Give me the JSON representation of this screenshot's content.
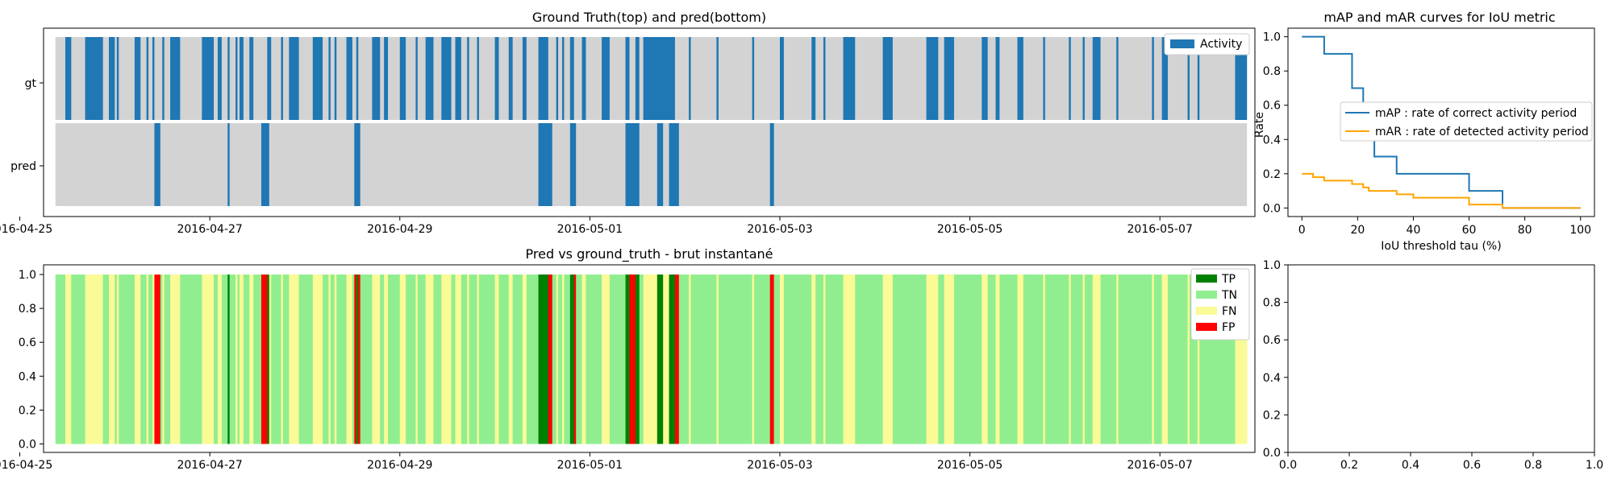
{
  "chart_data": [
    {
      "type": "timeline",
      "title": "Ground Truth(top) and pred(bottom)",
      "rows": [
        "gt",
        "pred"
      ],
      "x_range": [
        "2016-04-25T06:00",
        "2016-05-08T00:00"
      ],
      "x_ticks": [
        "2016-04-25",
        "2016-04-27",
        "2016-04-29",
        "2016-05-01",
        "2016-05-03",
        "2016-05-05",
        "2016-05-07"
      ],
      "data_range": [
        "2016-04-25T09:00",
        "2016-05-07T22:00"
      ],
      "legend": [
        "Activity"
      ],
      "legend_position": "upper right",
      "colors": {
        "activity": "#1f77b4",
        "background": "#d3d3d3"
      },
      "gt_activity_intervals": [
        [
          "2016-04-25T11:30",
          "2016-04-25T13:00"
        ],
        [
          "2016-04-25T16:30",
          "2016-04-25T21:00"
        ],
        [
          "2016-04-25T22:30",
          "2016-04-26T00:00"
        ],
        [
          "2016-04-26T00:30",
          "2016-04-26T01:00"
        ],
        [
          "2016-04-26T05:00",
          "2016-04-26T06:30"
        ],
        [
          "2016-04-26T08:00",
          "2016-04-26T08:30"
        ],
        [
          "2016-04-26T09:30",
          "2016-04-26T10:00"
        ],
        [
          "2016-04-26T12:00",
          "2016-04-26T12:30"
        ],
        [
          "2016-04-26T14:00",
          "2016-04-26T16:30"
        ],
        [
          "2016-04-26T22:00",
          "2016-04-27T01:00"
        ],
        [
          "2016-04-27T02:00",
          "2016-04-27T03:00"
        ],
        [
          "2016-04-27T04:30",
          "2016-04-27T05:00"
        ],
        [
          "2016-04-27T06:30",
          "2016-04-27T07:00"
        ],
        [
          "2016-04-27T07:30",
          "2016-04-27T08:30"
        ],
        [
          "2016-04-27T10:00",
          "2016-04-27T11:00"
        ],
        [
          "2016-04-27T14:30",
          "2016-04-27T15:30"
        ],
        [
          "2016-04-27T18:00",
          "2016-04-27T18:30"
        ],
        [
          "2016-04-27T20:00",
          "2016-04-27T22:30"
        ],
        [
          "2016-04-28T02:00",
          "2016-04-28T04:30"
        ],
        [
          "2016-04-28T06:00",
          "2016-04-28T06:30"
        ],
        [
          "2016-04-28T07:30",
          "2016-04-28T08:00"
        ],
        [
          "2016-04-28T10:30",
          "2016-04-28T12:00"
        ],
        [
          "2016-04-28T13:00",
          "2016-04-28T13:30"
        ],
        [
          "2016-04-28T17:00",
          "2016-04-28T19:00"
        ],
        [
          "2016-04-28T20:00",
          "2016-04-28T21:00"
        ],
        [
          "2016-04-29T00:00",
          "2016-04-29T01:30"
        ],
        [
          "2016-04-29T04:00",
          "2016-04-29T04:30"
        ],
        [
          "2016-04-29T06:30",
          "2016-04-29T08:30"
        ],
        [
          "2016-04-29T10:30",
          "2016-04-29T13:00"
        ],
        [
          "2016-04-29T14:00",
          "2016-04-29T15:30"
        ],
        [
          "2016-04-29T17:00",
          "2016-04-29T17:30"
        ],
        [
          "2016-04-29T19:30",
          "2016-04-29T20:00"
        ],
        [
          "2016-04-30T00:00",
          "2016-04-30T01:00"
        ],
        [
          "2016-04-30T03:30",
          "2016-04-30T04:30"
        ],
        [
          "2016-04-30T07:00",
          "2016-04-30T08:00"
        ],
        [
          "2016-04-30T11:00",
          "2016-04-30T13:30"
        ],
        [
          "2016-04-30T15:30",
          "2016-04-30T16:00"
        ],
        [
          "2016-04-30T17:00",
          "2016-04-30T17:30"
        ],
        [
          "2016-04-30T19:00",
          "2016-04-30T20:00"
        ],
        [
          "2016-04-30T22:00",
          "2016-04-30T23:00"
        ],
        [
          "2016-05-01T03:00",
          "2016-05-01T05:00"
        ],
        [
          "2016-05-01T09:00",
          "2016-05-01T10:00"
        ],
        [
          "2016-05-01T11:30",
          "2016-05-01T12:30"
        ],
        [
          "2016-05-01T13:30",
          "2016-05-01T21:30"
        ],
        [
          "2016-05-02T01:00",
          "2016-05-02T01:30"
        ],
        [
          "2016-05-02T08:00",
          "2016-05-02T08:30"
        ],
        [
          "2016-05-02T17:00",
          "2016-05-02T17:30"
        ],
        [
          "2016-05-03T00:00",
          "2016-05-03T01:00"
        ],
        [
          "2016-05-03T08:00",
          "2016-05-03T09:00"
        ],
        [
          "2016-05-03T11:00",
          "2016-05-03T11:30"
        ],
        [
          "2016-05-03T16:00",
          "2016-05-03T19:00"
        ],
        [
          "2016-05-04T02:00",
          "2016-05-04T04:30"
        ],
        [
          "2016-05-04T13:00",
          "2016-05-04T16:00"
        ],
        [
          "2016-05-04T17:30",
          "2016-05-04T20:00"
        ],
        [
          "2016-05-05T03:00",
          "2016-05-05T04:30"
        ],
        [
          "2016-05-05T06:30",
          "2016-05-05T07:30"
        ],
        [
          "2016-05-05T12:00",
          "2016-05-05T13:30"
        ],
        [
          "2016-05-05T18:30",
          "2016-05-05T19:00"
        ],
        [
          "2016-05-06T01:00",
          "2016-05-06T01:30"
        ],
        [
          "2016-05-06T04:30",
          "2016-05-06T05:00"
        ],
        [
          "2016-05-06T07:00",
          "2016-05-06T09:00"
        ],
        [
          "2016-05-06T13:00",
          "2016-05-06T13:30"
        ],
        [
          "2016-05-06T22:00",
          "2016-05-06T22:30"
        ],
        [
          "2016-05-07T00:30",
          "2016-05-07T02:00"
        ],
        [
          "2016-05-07T07:00",
          "2016-05-07T07:30"
        ],
        [
          "2016-05-07T09:30",
          "2016-05-07T10:00"
        ],
        [
          "2016-05-07T19:00",
          "2016-05-07T22:00"
        ]
      ],
      "pred_activity_intervals": [
        [
          "2016-04-26T10:00",
          "2016-04-26T11:30"
        ],
        [
          "2016-04-27T04:30",
          "2016-04-27T05:00"
        ],
        [
          "2016-04-27T13:00",
          "2016-04-27T15:00"
        ],
        [
          "2016-04-28T12:30",
          "2016-04-28T14:00"
        ],
        [
          "2016-04-30T11:00",
          "2016-04-30T14:30"
        ],
        [
          "2016-04-30T19:00",
          "2016-04-30T20:30"
        ],
        [
          "2016-05-01T09:00",
          "2016-05-01T12:30"
        ],
        [
          "2016-05-01T17:00",
          "2016-05-01T18:30"
        ],
        [
          "2016-05-01T20:00",
          "2016-05-01T22:30"
        ],
        [
          "2016-05-02T21:30",
          "2016-05-02T22:30"
        ]
      ]
    },
    {
      "type": "line",
      "title": "mAP and mAR curves for IoU metric",
      "xlabel": "IoU threshold tau (%)",
      "ylabel": "Rate",
      "xlim": [
        -5,
        105
      ],
      "ylim": [
        -0.05,
        1.05
      ],
      "x_ticks": [
        0,
        20,
        40,
        60,
        80,
        100
      ],
      "y_ticks": [
        0.0,
        0.2,
        0.4,
        0.6,
        0.8,
        1.0
      ],
      "legend_position": "center right",
      "series": [
        {
          "name": "mAP : rate of correct activity period",
          "color": "#1f77b4",
          "steps": [
            [
              0,
              1.0
            ],
            [
              8,
              0.9
            ],
            [
              18,
              0.7
            ],
            [
              22,
              0.5
            ],
            [
              26,
              0.3
            ],
            [
              30,
              0.3
            ],
            [
              34,
              0.2
            ],
            [
              60,
              0.1
            ],
            [
              72,
              0.0
            ],
            [
              100,
              0.0
            ]
          ]
        },
        {
          "name": "mAR : rate of detected activity period",
          "color": "#ffa500",
          "steps": [
            [
              0,
              0.2
            ],
            [
              4,
              0.18
            ],
            [
              8,
              0.16
            ],
            [
              14,
              0.16
            ],
            [
              18,
              0.14
            ],
            [
              22,
              0.12
            ],
            [
              24,
              0.1
            ],
            [
              30,
              0.1
            ],
            [
              34,
              0.08
            ],
            [
              40,
              0.06
            ],
            [
              58,
              0.06
            ],
            [
              60,
              0.02
            ],
            [
              72,
              0.0
            ],
            [
              100,
              0.0
            ]
          ]
        }
      ]
    },
    {
      "type": "timeline",
      "title": "Pred vs ground_truth - brut instantané",
      "y_ticks": [
        "0.0",
        "0.2",
        "0.4",
        "0.6",
        "0.8",
        "1.0"
      ],
      "x_ticks": [
        "2016-04-25",
        "2016-04-27",
        "2016-04-29",
        "2016-05-01",
        "2016-05-03",
        "2016-05-05",
        "2016-05-07"
      ],
      "legend_position": "upper right",
      "categories": [
        "TP",
        "TN",
        "FN",
        "FP"
      ],
      "colors": {
        "TP": "#008000",
        "TN": "#90ee90",
        "FN": "#fafa96",
        "FP": "#ff0000"
      }
    },
    {
      "type": "empty",
      "x_ticks": [
        "0.0",
        "0.2",
        "0.4",
        "0.6",
        "0.8",
        "1.0"
      ],
      "y_ticks": [
        "0.0",
        "0.2",
        "0.4",
        "0.6",
        "0.8",
        "1.0"
      ]
    }
  ]
}
